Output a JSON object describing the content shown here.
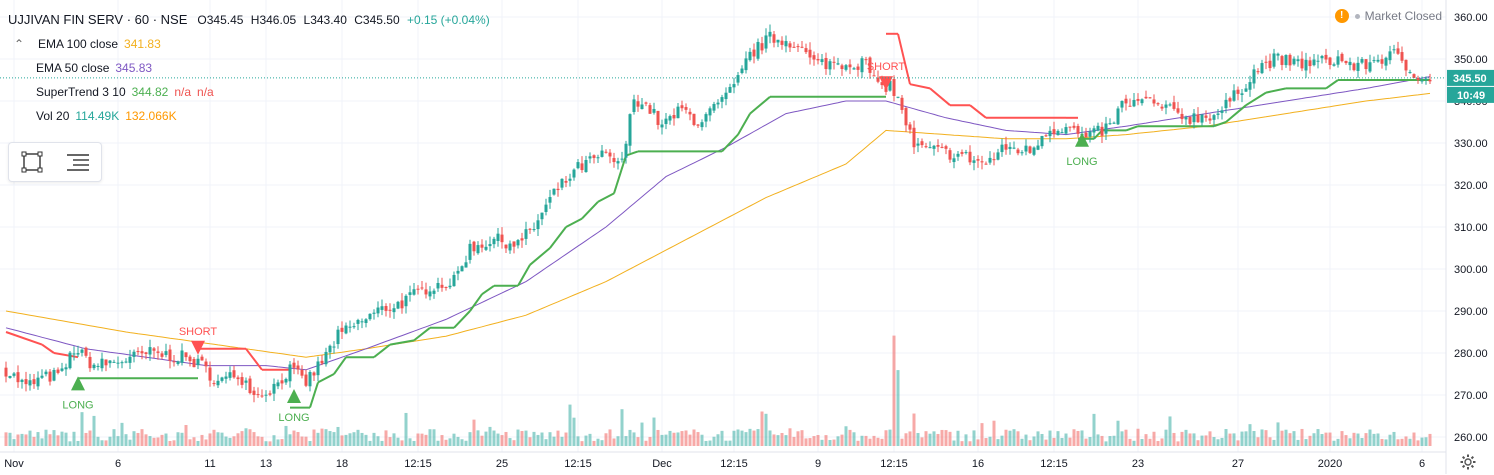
{
  "header": {
    "title": "UJJIVAN FIN SERV · 60 · NSE",
    "open": "O345.45",
    "high": "H346.05",
    "low": "L343.40",
    "close": "C345.50",
    "change": "+0.15 (+0.04%)"
  },
  "indicators": [
    {
      "label": "EMA 100 close",
      "value": "341.83",
      "value2": "",
      "value3": "",
      "color": "#f2b01e",
      "color2": "",
      "toggle": true
    },
    {
      "label": "EMA 50 close",
      "value": "345.83",
      "value2": "",
      "value3": "",
      "color": "#7e57c2",
      "color2": "",
      "toggle": false
    },
    {
      "label": "SuperTrend 3 10",
      "value": "344.82",
      "value2": "n/a",
      "value3": "n/a",
      "color": "#4caf50",
      "color2": "#ef5350",
      "toggle": false
    },
    {
      "label": "Vol 20",
      "value": "114.49K",
      "value2": "132.066K",
      "value3": "",
      "color": "#26a69a",
      "color2": "#ff9800",
      "toggle": false
    }
  ],
  "status": {
    "text": "Market Closed",
    "icon": "warning-icon"
  },
  "tools": [
    "rectangle-select-icon",
    "object-tree-icon"
  ],
  "price_badges": {
    "last": "345.50",
    "countdown": "10:49"
  },
  "colors": {
    "up": "#26a69a",
    "down": "#ef5350",
    "st_up": "#4caf50",
    "st_down": "#ff5252",
    "ema50": "#7e57c2",
    "ema100": "#f2b01e",
    "vol_up": "#26a69a",
    "vol_down": "#ef5350",
    "badge": "#26a69a"
  },
  "chart_data": {
    "type": "candlestick",
    "ylim": [
      258,
      362
    ],
    "yticks": [
      260,
      270,
      280,
      290,
      300,
      310,
      320,
      330,
      340,
      350,
      360
    ],
    "xticks": [
      {
        "label": "Nov",
        "i": 2
      },
      {
        "label": "6",
        "i": 28
      },
      {
        "label": "11",
        "i": 51
      },
      {
        "label": "13",
        "i": 65
      },
      {
        "label": "18",
        "i": 84
      },
      {
        "label": "12:15",
        "i": 103
      },
      {
        "label": "25",
        "i": 124
      },
      {
        "label": "12:15",
        "i": 143
      },
      {
        "label": "Dec",
        "i": 164
      },
      {
        "label": "12:15",
        "i": 182
      },
      {
        "label": "9",
        "i": 203
      },
      {
        "label": "12:15",
        "i": 222
      },
      {
        "label": "16",
        "i": 243
      },
      {
        "label": "12:15",
        "i": 262
      },
      {
        "label": "23",
        "i": 283
      },
      {
        "label": "27",
        "i": 308
      },
      {
        "label": "2020",
        "i": 331
      },
      {
        "label": "6",
        "i": 354
      }
    ],
    "anchors": [
      [
        0,
        276
      ],
      [
        5,
        272
      ],
      [
        9,
        274
      ],
      [
        14,
        275
      ],
      [
        17,
        281
      ],
      [
        22,
        277
      ],
      [
        28,
        278
      ],
      [
        36,
        280
      ],
      [
        44,
        279
      ],
      [
        49,
        277
      ],
      [
        53,
        273
      ],
      [
        58,
        275
      ],
      [
        63,
        270
      ],
      [
        67,
        272
      ],
      [
        71,
        276
      ],
      [
        75,
        273
      ],
      [
        79,
        278
      ],
      [
        83,
        284
      ],
      [
        88,
        287
      ],
      [
        93,
        290
      ],
      [
        99,
        292
      ],
      [
        106,
        296
      ],
      [
        112,
        297
      ],
      [
        116,
        305
      ],
      [
        122,
        307
      ],
      [
        128,
        306
      ],
      [
        132,
        310
      ],
      [
        137,
        318
      ],
      [
        143,
        324
      ],
      [
        149,
        327
      ],
      [
        154,
        325
      ],
      [
        157,
        341
      ],
      [
        161,
        338
      ],
      [
        164,
        334
      ],
      [
        169,
        338
      ],
      [
        173,
        335
      ],
      [
        177,
        338
      ],
      [
        182,
        343
      ],
      [
        186,
        351
      ],
      [
        191,
        355
      ],
      [
        197,
        354
      ],
      [
        202,
        349
      ],
      [
        207,
        349
      ],
      [
        211,
        349
      ],
      [
        215,
        349
      ],
      [
        218,
        343
      ],
      [
        221,
        344
      ],
      [
        224,
        338
      ],
      [
        227,
        329
      ],
      [
        233,
        328
      ],
      [
        239,
        327
      ],
      [
        245,
        325
      ],
      [
        250,
        329
      ],
      [
        256,
        328
      ],
      [
        260,
        333
      ],
      [
        265,
        334
      ],
      [
        270,
        331
      ],
      [
        276,
        334
      ],
      [
        279,
        339
      ],
      [
        285,
        340
      ],
      [
        290,
        338
      ],
      [
        296,
        336
      ],
      [
        303,
        337
      ],
      [
        308,
        342
      ],
      [
        312,
        347
      ],
      [
        317,
        350
      ],
      [
        322,
        349
      ],
      [
        327,
        349
      ],
      [
        333,
        350
      ],
      [
        338,
        348
      ],
      [
        343,
        350
      ],
      [
        347,
        351
      ],
      [
        351,
        347
      ],
      [
        356,
        345.5
      ]
    ],
    "supertrend": {
      "values": [
        [
          0,
          285,
          "down"
        ],
        [
          9,
          282,
          "down"
        ],
        [
          12,
          280,
          "down"
        ],
        [
          18,
          279,
          "down"
        ],
        [
          18,
          274,
          "up"
        ],
        [
          48,
          274,
          "up"
        ],
        [
          48,
          281,
          "down"
        ],
        [
          60,
          281,
          "down"
        ],
        [
          64,
          276,
          "down"
        ],
        [
          71,
          276,
          "down"
        ],
        [
          71,
          267,
          "up"
        ],
        [
          76,
          267,
          "up"
        ],
        [
          78,
          273,
          "up"
        ],
        [
          82,
          275,
          "up"
        ],
        [
          85,
          279,
          "up"
        ],
        [
          92,
          279,
          "up"
        ],
        [
          96,
          282,
          "up"
        ],
        [
          102,
          283,
          "up"
        ],
        [
          106,
          286,
          "up"
        ],
        [
          112,
          286,
          "up"
        ],
        [
          116,
          290,
          "up"
        ],
        [
          119,
          294,
          "up"
        ],
        [
          122,
          296,
          "up"
        ],
        [
          128,
          296,
          "up"
        ],
        [
          131,
          301,
          "up"
        ],
        [
          136,
          305,
          "up"
        ],
        [
          140,
          310,
          "up"
        ],
        [
          144,
          312,
          "up"
        ],
        [
          148,
          316,
          "up"
        ],
        [
          152,
          318,
          "up"
        ],
        [
          155,
          327,
          "up"
        ],
        [
          158,
          328,
          "up"
        ],
        [
          179,
          328,
          "up"
        ],
        [
          183,
          332,
          "up"
        ],
        [
          186,
          337,
          "up"
        ],
        [
          191,
          341,
          "up"
        ],
        [
          196,
          341,
          "up"
        ],
        [
          215,
          341,
          "up"
        ],
        [
          220,
          341,
          "up"
        ],
        [
          220,
          356,
          "down"
        ],
        [
          223,
          356,
          "down"
        ],
        [
          226,
          344,
          "down"
        ],
        [
          231,
          343,
          "down"
        ],
        [
          236,
          339,
          "down"
        ],
        [
          241,
          339,
          "down"
        ],
        [
          245,
          336,
          "down"
        ],
        [
          265,
          336,
          "down"
        ],
        [
          268,
          336,
          "down"
        ],
        [
          268,
          331,
          "up"
        ],
        [
          272,
          331,
          "up"
        ],
        [
          274,
          333,
          "up"
        ],
        [
          280,
          333,
          "up"
        ],
        [
          283,
          334,
          "up"
        ],
        [
          302,
          334,
          "up"
        ],
        [
          305,
          335,
          "up"
        ],
        [
          310,
          339,
          "up"
        ],
        [
          315,
          342,
          "up"
        ],
        [
          320,
          343,
          "up"
        ],
        [
          330,
          343,
          "up"
        ],
        [
          333,
          345,
          "up"
        ],
        [
          356,
          345,
          "up"
        ]
      ],
      "signals": [
        {
          "label": "LONG",
          "i": 18,
          "price": 273,
          "type": "long"
        },
        {
          "label": "SHORT",
          "i": 48,
          "price": 281,
          "type": "short"
        },
        {
          "label": "LONG",
          "i": 72,
          "price": 270,
          "type": "long"
        },
        {
          "label": "SHORT",
          "i": 220,
          "price": 344,
          "type": "short"
        },
        {
          "label": "LONG",
          "i": 269,
          "price": 331,
          "type": "long"
        }
      ]
    },
    "ema50": [
      [
        0,
        286
      ],
      [
        20,
        281
      ],
      [
        50,
        277
      ],
      [
        65,
        277
      ],
      [
        75,
        276
      ],
      [
        90,
        281
      ],
      [
        110,
        288
      ],
      [
        130,
        297
      ],
      [
        150,
        310
      ],
      [
        165,
        322
      ],
      [
        180,
        329
      ],
      [
        195,
        337
      ],
      [
        210,
        340
      ],
      [
        220,
        340
      ],
      [
        235,
        336
      ],
      [
        250,
        333
      ],
      [
        265,
        332
      ],
      [
        280,
        334
      ],
      [
        300,
        337
      ],
      [
        320,
        340
      ],
      [
        340,
        343
      ],
      [
        356,
        345.8
      ]
    ],
    "ema100": [
      [
        0,
        290
      ],
      [
        30,
        285
      ],
      [
        60,
        281
      ],
      [
        75,
        279
      ],
      [
        90,
        281
      ],
      [
        110,
        284
      ],
      [
        130,
        289
      ],
      [
        150,
        297
      ],
      [
        170,
        307
      ],
      [
        190,
        317
      ],
      [
        210,
        325
      ],
      [
        220,
        333
      ],
      [
        235,
        332
      ],
      [
        250,
        331
      ],
      [
        265,
        331
      ],
      [
        280,
        332
      ],
      [
        300,
        334
      ],
      [
        320,
        337
      ],
      [
        340,
        340
      ],
      [
        356,
        341.8
      ]
    ],
    "volume": {
      "max": 500,
      "values": [],
      "spikes": [
        [
          222,
          480
        ],
        [
          223,
          330
        ],
        [
          141,
          180
        ],
        [
          154,
          160
        ],
        [
          189,
          150
        ],
        [
          190,
          140
        ],
        [
          247,
          110
        ],
        [
          311,
          95
        ]
      ]
    },
    "last_price": 345.5
  }
}
